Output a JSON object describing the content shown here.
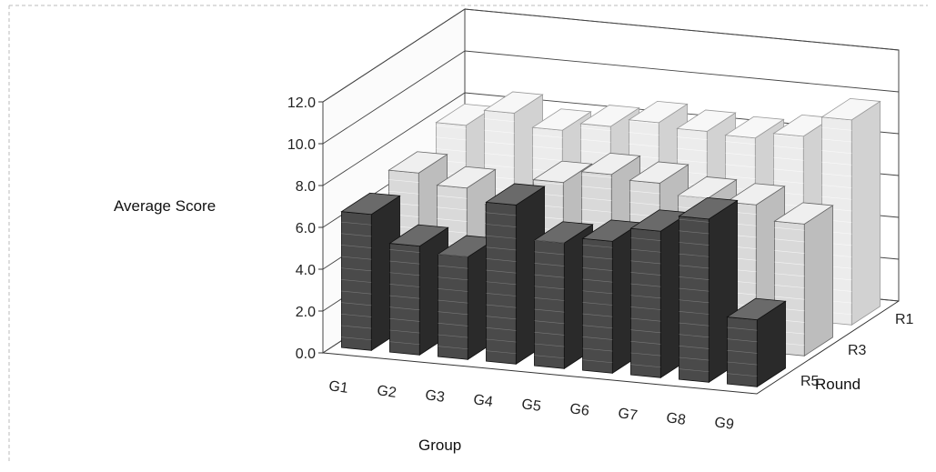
{
  "chart_data": {
    "type": "bar",
    "title": "",
    "xlabel": "Group",
    "ylabel": "Average Score",
    "zlabel": "Round",
    "categories": [
      "G1",
      "G2",
      "G3",
      "G4",
      "G5",
      "G6",
      "G7",
      "G8",
      "G9"
    ],
    "y_ticks": [
      "0.0",
      "2.0",
      "4.0",
      "6.0",
      "8.0",
      "10.0",
      "12.0"
    ],
    "ylim": [
      0,
      12
    ],
    "round_labels": [
      "R1",
      "R3",
      "R5"
    ],
    "series": [
      {
        "name": "R5",
        "values": [
          6.5,
          5.2,
          4.9,
          7.6,
          6.0,
          6.3,
          7.0,
          7.8,
          3.2
        ]
      },
      {
        "name": "R3",
        "values": [
          7.0,
          6.5,
          5.8,
          7.2,
          7.8,
          7.6,
          7.1,
          7.0,
          6.3
        ]
      },
      {
        "name": "R1",
        "values": [
          7.8,
          8.6,
          8.0,
          8.4,
          8.8,
          8.6,
          8.5,
          8.8,
          9.8
        ]
      }
    ],
    "grid": true,
    "style": "3d-bar"
  },
  "colors": {
    "front_face": "#4a4a4a",
    "front_side": "#2a2a2a",
    "mid_face": "#d9d9d9",
    "back_face": "#ececec",
    "gridline": "#444444"
  }
}
